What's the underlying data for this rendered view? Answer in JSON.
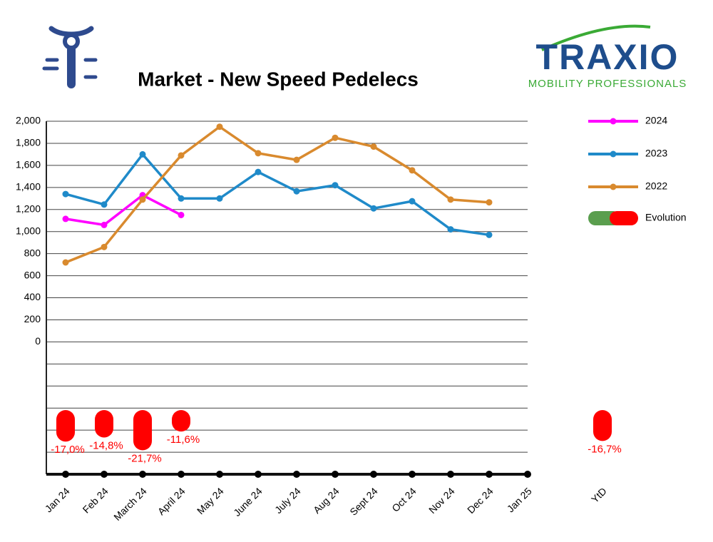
{
  "header": {
    "title": "Market - New Speed Pedelecs",
    "logo_name": "TRAXIO",
    "logo_tagline": "MOBILITY PROFESSIONALS"
  },
  "chart_data": {
    "type": "line",
    "categories": [
      "Jan 24",
      "Feb 24",
      "March 24",
      "April 24",
      "May 24",
      "June 24",
      "July 24",
      "Aug 24",
      "Sept 24",
      "Oct 24",
      "Nov 24",
      "Dec 24",
      "Jan 25"
    ],
    "series": [
      {
        "name": "2024",
        "color": "#ff00ff",
        "values": [
          1115,
          1060,
          1330,
          1150,
          null,
          null,
          null,
          null,
          null,
          null,
          null,
          null,
          null
        ]
      },
      {
        "name": "2023",
        "color": "#1f8ac9",
        "values": [
          1340,
          1245,
          1700,
          1300,
          1300,
          1540,
          1365,
          1420,
          1210,
          1275,
          1020,
          970,
          null
        ]
      },
      {
        "name": "2022",
        "color": "#d98a2e",
        "values": [
          720,
          860,
          1290,
          1690,
          1950,
          1710,
          1650,
          1850,
          1770,
          1555,
          1290,
          1265,
          null
        ]
      }
    ],
    "ylim": [
      -1200,
      2000
    ],
    "yticks": [
      {
        "value": 2000,
        "label": "2,000"
      },
      {
        "value": 1800,
        "label": "1,800"
      },
      {
        "value": 1600,
        "label": "1,600"
      },
      {
        "value": 1400,
        "label": "1,400"
      },
      {
        "value": 1200,
        "label": "1,200"
      },
      {
        "value": 1000,
        "label": "1,000"
      },
      800,
      600,
      400,
      200,
      0
    ],
    "grid": true,
    "legend": "top-right",
    "evolution": {
      "name": "Evolution",
      "positive_color": "#5a9e4e",
      "negative_color": "#ff0000",
      "values": [
        -17.0,
        -14.8,
        -21.7,
        -11.6,
        null,
        null,
        null,
        null,
        null,
        null,
        null,
        null,
        null
      ],
      "value_labels": [
        "-17,0%",
        "-14,8%",
        "-21,7%",
        "-11,6%",
        null,
        null,
        null,
        null,
        null,
        null,
        null,
        null,
        null
      ],
      "ytd_label": "YtD",
      "ytd_value": -16.7,
      "ytd_value_label": "-16,7%"
    }
  }
}
